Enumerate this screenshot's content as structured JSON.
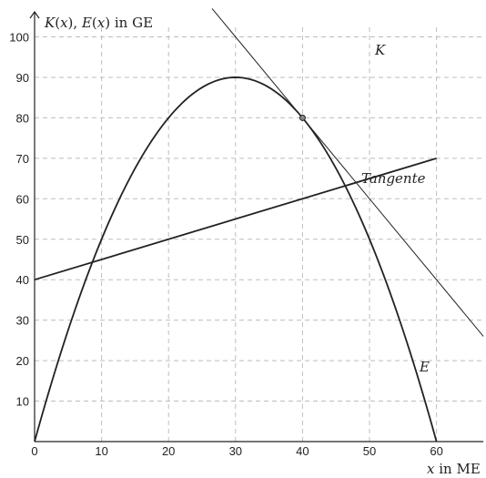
{
  "chart_data": {
    "type": "line",
    "ylabel": "K(x), E(x) in GE",
    "xlabel": "x in ME",
    "x_ticks": [
      0,
      10,
      20,
      30,
      40,
      50,
      60
    ],
    "y_ticks": [
      10,
      20,
      30,
      40,
      50,
      60,
      70,
      80,
      90,
      100
    ],
    "x_tick_labels": [
      "0",
      "10",
      "20",
      "30",
      "40",
      "50",
      "60"
    ],
    "y_tick_labels": [
      "10",
      "20",
      "30",
      "40",
      "50",
      "60",
      "70",
      "80",
      "90",
      "100"
    ],
    "xlim": [
      0,
      67
    ],
    "ylim": [
      0,
      103
    ],
    "grid": true,
    "series": [
      {
        "name": "K",
        "kind": "linear",
        "formula": "K(x) = 0.5x + 40",
        "x": [
          0,
          60
        ],
        "y": [
          40,
          70
        ]
      },
      {
        "name": "E",
        "kind": "parabola",
        "formula": "E(x) = -0.1(x - 30)^2 + 90",
        "x": [
          0,
          10,
          20,
          30,
          40,
          50,
          60
        ],
        "y": [
          0,
          50,
          80,
          90,
          80,
          50,
          0
        ]
      },
      {
        "name": "Tangente",
        "kind": "linear",
        "formula": "t(x) = -2x + 160",
        "x": [
          26.5,
          67
        ],
        "y": [
          107,
          26
        ]
      }
    ],
    "points": [
      {
        "x": 10,
        "y": 50,
        "marked": false
      },
      {
        "x": 40,
        "y": 80,
        "marked": true
      }
    ],
    "colors": {
      "curve": "#222222",
      "grid": "#bdbdbd",
      "background": "#ffffff"
    }
  }
}
